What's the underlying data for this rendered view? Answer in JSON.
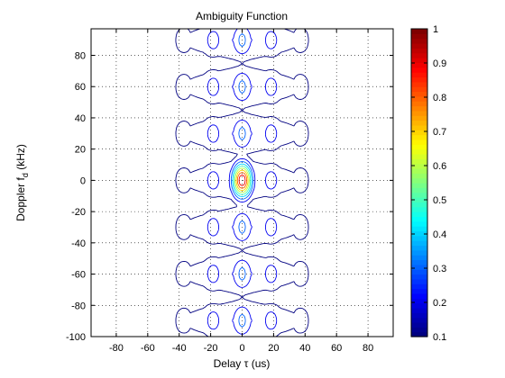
{
  "chart_data": {
    "type": "contour",
    "title": "Ambiguity Function",
    "xlabel": "Delay τ (us)",
    "ylabel_main": "Doppler f",
    "ylabel_sub": "d",
    "ylabel_unit": " (kHz)",
    "xlim": [
      -96,
      96
    ],
    "ylim": [
      -100,
      97
    ],
    "xticks": [
      -80,
      -60,
      -40,
      -20,
      0,
      20,
      40,
      60,
      80
    ],
    "yticks": [
      -100,
      -80,
      -60,
      -40,
      -20,
      0,
      20,
      40,
      60,
      80
    ],
    "grid": true,
    "grid_style": "dotted",
    "colormap": "jet",
    "colorbar": {
      "min": 0.1,
      "max": 1,
      "ticks": [
        0.1,
        0.2,
        0.3,
        0.4,
        0.5,
        0.6,
        0.7,
        0.8,
        0.9,
        1
      ],
      "tick_labels": [
        "0.1",
        "0.2",
        "0.3",
        "0.4",
        "0.5",
        "0.6",
        "0.7",
        "0.8",
        "0.9",
        "1"
      ],
      "placement": "right"
    },
    "contour_levels": [
      0.1,
      0.2,
      0.3,
      0.4,
      0.5,
      0.6,
      0.7,
      0.8,
      0.9,
      1.0
    ],
    "peak": {
      "x": 0,
      "y": 0,
      "value": 1.0
    }
  }
}
